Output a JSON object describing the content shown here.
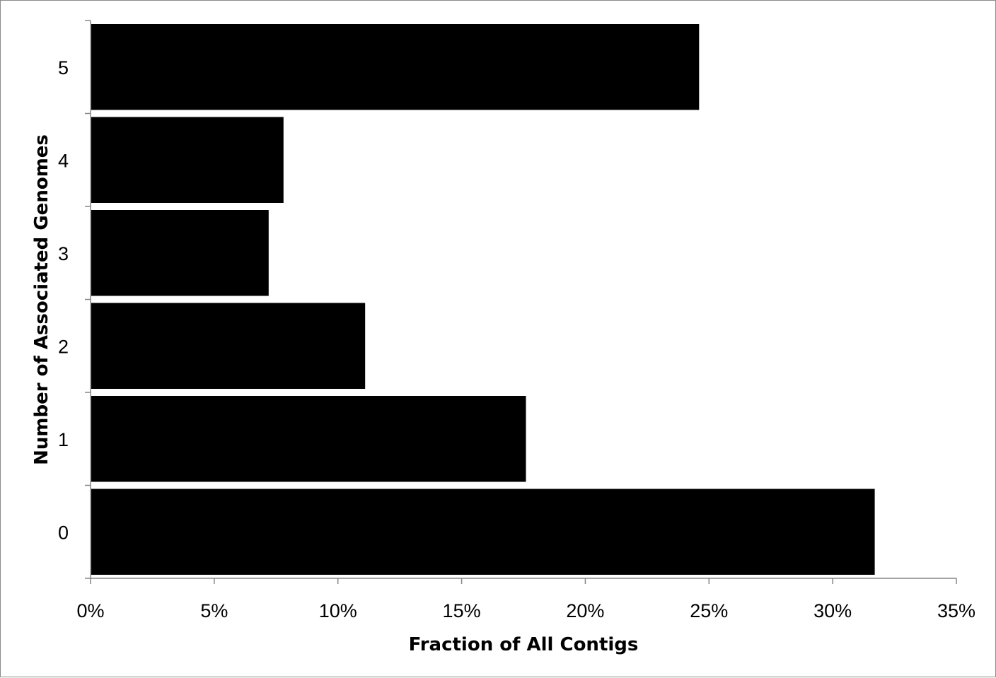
{
  "chart_data": {
    "type": "bar",
    "orientation": "horizontal",
    "title": "",
    "xlabel": "Fraction of All Contigs",
    "ylabel": "Number of Associated Genomes",
    "categories": [
      "0",
      "1",
      "2",
      "3",
      "4",
      "5"
    ],
    "values": [
      31.7,
      17.6,
      11.1,
      7.2,
      7.8,
      24.6
    ],
    "value_unit": "%",
    "xlim": [
      0,
      35
    ],
    "xticks": [
      0,
      5,
      10,
      15,
      20,
      25,
      30,
      35
    ],
    "xtick_labels": [
      "0%",
      "5%",
      "10%",
      "15%",
      "20%",
      "25%",
      "30%",
      "35%"
    ],
    "bar_color": "#000000",
    "grid": false,
    "legend": "none"
  }
}
